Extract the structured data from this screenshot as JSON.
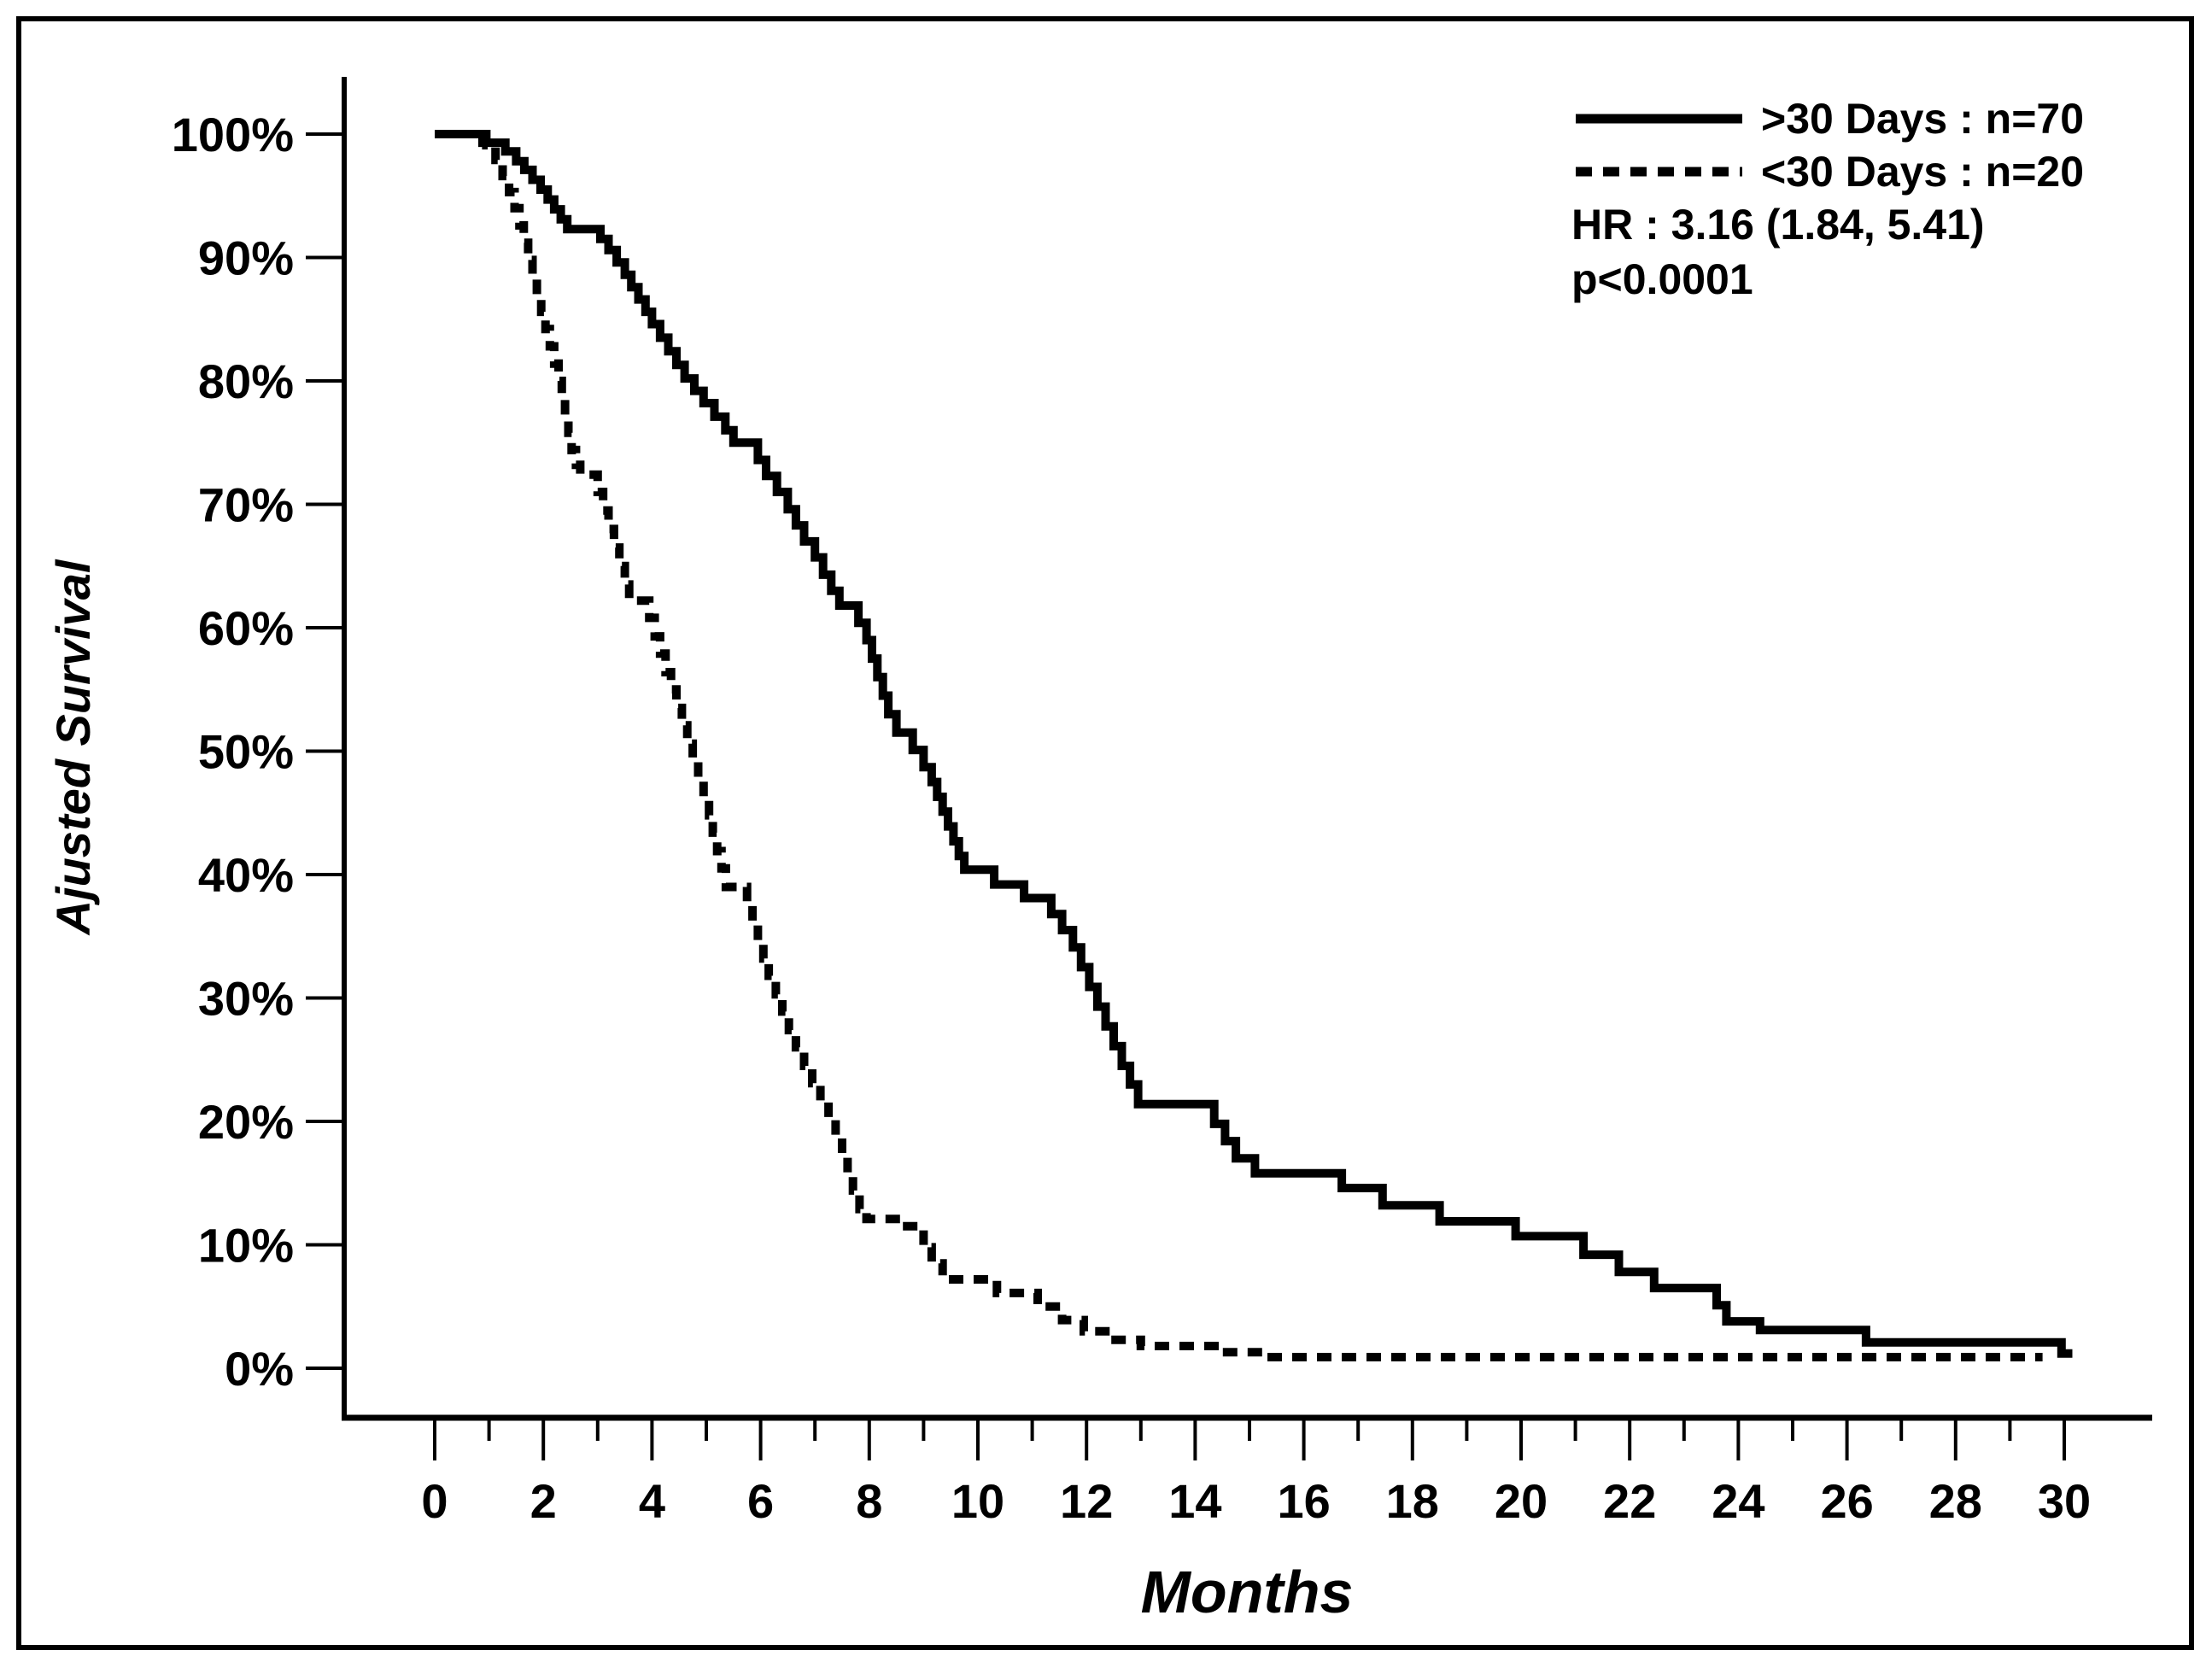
{
  "figure": {
    "ylabel": "Ajusted Survival",
    "xlabel": "Months",
    "legend": [
      {
        "label": ">30 Days : n=70",
        "style": "solid"
      },
      {
        "label": "<30 Days : n=20",
        "style": "dashed"
      }
    ],
    "annotations": {
      "hr": "HR : 3.16 (1.84, 5.41)",
      "p": "p<0.0001"
    }
  },
  "chart_data": {
    "type": "line",
    "subtype": "kaplan-meier-step",
    "title": "",
    "xlabel": "Months",
    "ylabel": "Ajusted Survival",
    "xlim": [
      0,
      30
    ],
    "ylim": [
      0,
      100
    ],
    "grid": false,
    "legend_position": "top-right",
    "x_ticks": [
      0,
      2,
      4,
      6,
      8,
      10,
      12,
      14,
      16,
      18,
      20,
      22,
      24,
      26,
      28,
      30
    ],
    "x_minor_ticks": [
      1,
      3,
      5,
      7,
      9,
      11,
      13,
      15,
      17,
      19,
      21,
      23,
      25,
      27,
      29
    ],
    "y_ticks": [
      0,
      10,
      20,
      30,
      40,
      50,
      60,
      70,
      80,
      90,
      100
    ],
    "y_tick_labels": [
      "0%",
      "10%",
      "20%",
      "30%",
      "40%",
      "50%",
      "60%",
      "70%",
      "80%",
      "90%",
      "100%"
    ],
    "annotations": [
      "HR : 3.16 (1.84, 5.41)",
      "p<0.0001"
    ],
    "series": [
      {
        "name": ">30 Days : n=70",
        "line": "solid",
        "n": 70,
        "points": [
          [
            0,
            100
          ],
          [
            0.88,
            99.3
          ],
          [
            1.3,
            98.6
          ],
          [
            1.5,
            97.8
          ],
          [
            1.65,
            97.1
          ],
          [
            1.8,
            96.3
          ],
          [
            1.95,
            95.5
          ],
          [
            2.08,
            94.7
          ],
          [
            2.2,
            93.9
          ],
          [
            2.32,
            93.1
          ],
          [
            2.44,
            92.3
          ],
          [
            3.05,
            91.5
          ],
          [
            3.2,
            90.6
          ],
          [
            3.35,
            89.6
          ],
          [
            3.5,
            88.6
          ],
          [
            3.62,
            87.6
          ],
          [
            3.75,
            86.6
          ],
          [
            3.88,
            85.6
          ],
          [
            4.0,
            84.6
          ],
          [
            4.15,
            83.5
          ],
          [
            4.3,
            82.4
          ],
          [
            4.45,
            81.3
          ],
          [
            4.6,
            80.2
          ],
          [
            4.78,
            79.2
          ],
          [
            4.95,
            78.2
          ],
          [
            5.15,
            77.1
          ],
          [
            5.35,
            76.0
          ],
          [
            5.5,
            75.0
          ],
          [
            5.95,
            73.6
          ],
          [
            6.1,
            72.3
          ],
          [
            6.3,
            71.0
          ],
          [
            6.5,
            69.6
          ],
          [
            6.65,
            68.3
          ],
          [
            6.8,
            67.0
          ],
          [
            7.0,
            65.7
          ],
          [
            7.15,
            64.3
          ],
          [
            7.3,
            63.0
          ],
          [
            7.45,
            61.8
          ],
          [
            7.8,
            60.4
          ],
          [
            7.95,
            59.0
          ],
          [
            8.05,
            57.5
          ],
          [
            8.15,
            56.0
          ],
          [
            8.25,
            54.5
          ],
          [
            8.35,
            53.0
          ],
          [
            8.5,
            51.5
          ],
          [
            8.8,
            50.1
          ],
          [
            9.0,
            48.7
          ],
          [
            9.15,
            47.5
          ],
          [
            9.25,
            46.3
          ],
          [
            9.35,
            45.1
          ],
          [
            9.45,
            43.9
          ],
          [
            9.55,
            42.7
          ],
          [
            9.65,
            41.5
          ],
          [
            9.75,
            40.4
          ],
          [
            10.3,
            39.2
          ],
          [
            10.85,
            38.1
          ],
          [
            11.35,
            36.8
          ],
          [
            11.55,
            35.5
          ],
          [
            11.75,
            34.1
          ],
          [
            11.9,
            32.5
          ],
          [
            12.05,
            30.9
          ],
          [
            12.2,
            29.3
          ],
          [
            12.35,
            27.7
          ],
          [
            12.5,
            26.1
          ],
          [
            12.65,
            24.5
          ],
          [
            12.8,
            23.0
          ],
          [
            12.95,
            21.4
          ],
          [
            14.35,
            19.8
          ],
          [
            14.55,
            18.4
          ],
          [
            14.75,
            17.0
          ],
          [
            15.1,
            15.8
          ],
          [
            16.7,
            14.6
          ],
          [
            17.45,
            13.2
          ],
          [
            18.5,
            11.9
          ],
          [
            19.9,
            10.7
          ],
          [
            21.15,
            9.2
          ],
          [
            21.8,
            7.8
          ],
          [
            22.45,
            6.5
          ],
          [
            23.6,
            5.1
          ],
          [
            23.78,
            3.8
          ],
          [
            24.4,
            3.1
          ],
          [
            26.35,
            2.1
          ],
          [
            29.95,
            1.2
          ],
          [
            30.15,
            1.2
          ]
        ]
      },
      {
        "name": "<30 Days : n=20",
        "line": "dashed",
        "n": 20,
        "points": [
          [
            0,
            100
          ],
          [
            0.95,
            99.1
          ],
          [
            1.12,
            97.9
          ],
          [
            1.25,
            96.6
          ],
          [
            1.37,
            95.3
          ],
          [
            1.47,
            94.0
          ],
          [
            1.56,
            92.6
          ],
          [
            1.64,
            91.2
          ],
          [
            1.72,
            89.8
          ],
          [
            1.8,
            88.4
          ],
          [
            1.88,
            87.0
          ],
          [
            1.96,
            85.6
          ],
          [
            2.04,
            84.2
          ],
          [
            2.12,
            82.8
          ],
          [
            2.2,
            81.4
          ],
          [
            2.28,
            80.0
          ],
          [
            2.34,
            78.6
          ],
          [
            2.4,
            77.2
          ],
          [
            2.46,
            75.8
          ],
          [
            2.52,
            74.4
          ],
          [
            2.6,
            73.2
          ],
          [
            2.68,
            72.4
          ],
          [
            3.0,
            71.0
          ],
          [
            3.1,
            69.5
          ],
          [
            3.2,
            68.0
          ],
          [
            3.3,
            66.5
          ],
          [
            3.4,
            65.0
          ],
          [
            3.5,
            63.5
          ],
          [
            3.58,
            62.2
          ],
          [
            3.95,
            60.8
          ],
          [
            4.05,
            59.3
          ],
          [
            4.15,
            57.9
          ],
          [
            4.25,
            56.4
          ],
          [
            4.35,
            55.0
          ],
          [
            4.45,
            53.5
          ],
          [
            4.55,
            52.1
          ],
          [
            4.65,
            50.6
          ],
          [
            4.75,
            49.2
          ],
          [
            4.85,
            47.7
          ],
          [
            4.95,
            46.3
          ],
          [
            5.05,
            44.8
          ],
          [
            5.12,
            43.4
          ],
          [
            5.2,
            41.9
          ],
          [
            5.28,
            40.5
          ],
          [
            5.36,
            39.0
          ],
          [
            5.75,
            37.6
          ],
          [
            5.85,
            36.1
          ],
          [
            5.95,
            34.7
          ],
          [
            6.05,
            33.2
          ],
          [
            6.15,
            31.8
          ],
          [
            6.28,
            30.3
          ],
          [
            6.4,
            28.9
          ],
          [
            6.52,
            27.4
          ],
          [
            6.65,
            26.0
          ],
          [
            6.8,
            24.5
          ],
          [
            6.95,
            23.1
          ],
          [
            7.1,
            21.6
          ],
          [
            7.25,
            20.2
          ],
          [
            7.38,
            18.7
          ],
          [
            7.5,
            17.3
          ],
          [
            7.6,
            15.8
          ],
          [
            7.7,
            14.4
          ],
          [
            7.82,
            12.9
          ],
          [
            7.95,
            12.1
          ],
          [
            8.6,
            11.5
          ],
          [
            9.0,
            9.8
          ],
          [
            9.15,
            8.5
          ],
          [
            9.35,
            7.2
          ],
          [
            10.35,
            6.1
          ],
          [
            11.1,
            5.0
          ],
          [
            11.55,
            3.9
          ],
          [
            11.95,
            3.0
          ],
          [
            12.45,
            2.3
          ],
          [
            13.0,
            1.8
          ],
          [
            14.5,
            1.3
          ],
          [
            15.3,
            0.9
          ],
          [
            29.6,
            0.9
          ]
        ]
      }
    ]
  }
}
